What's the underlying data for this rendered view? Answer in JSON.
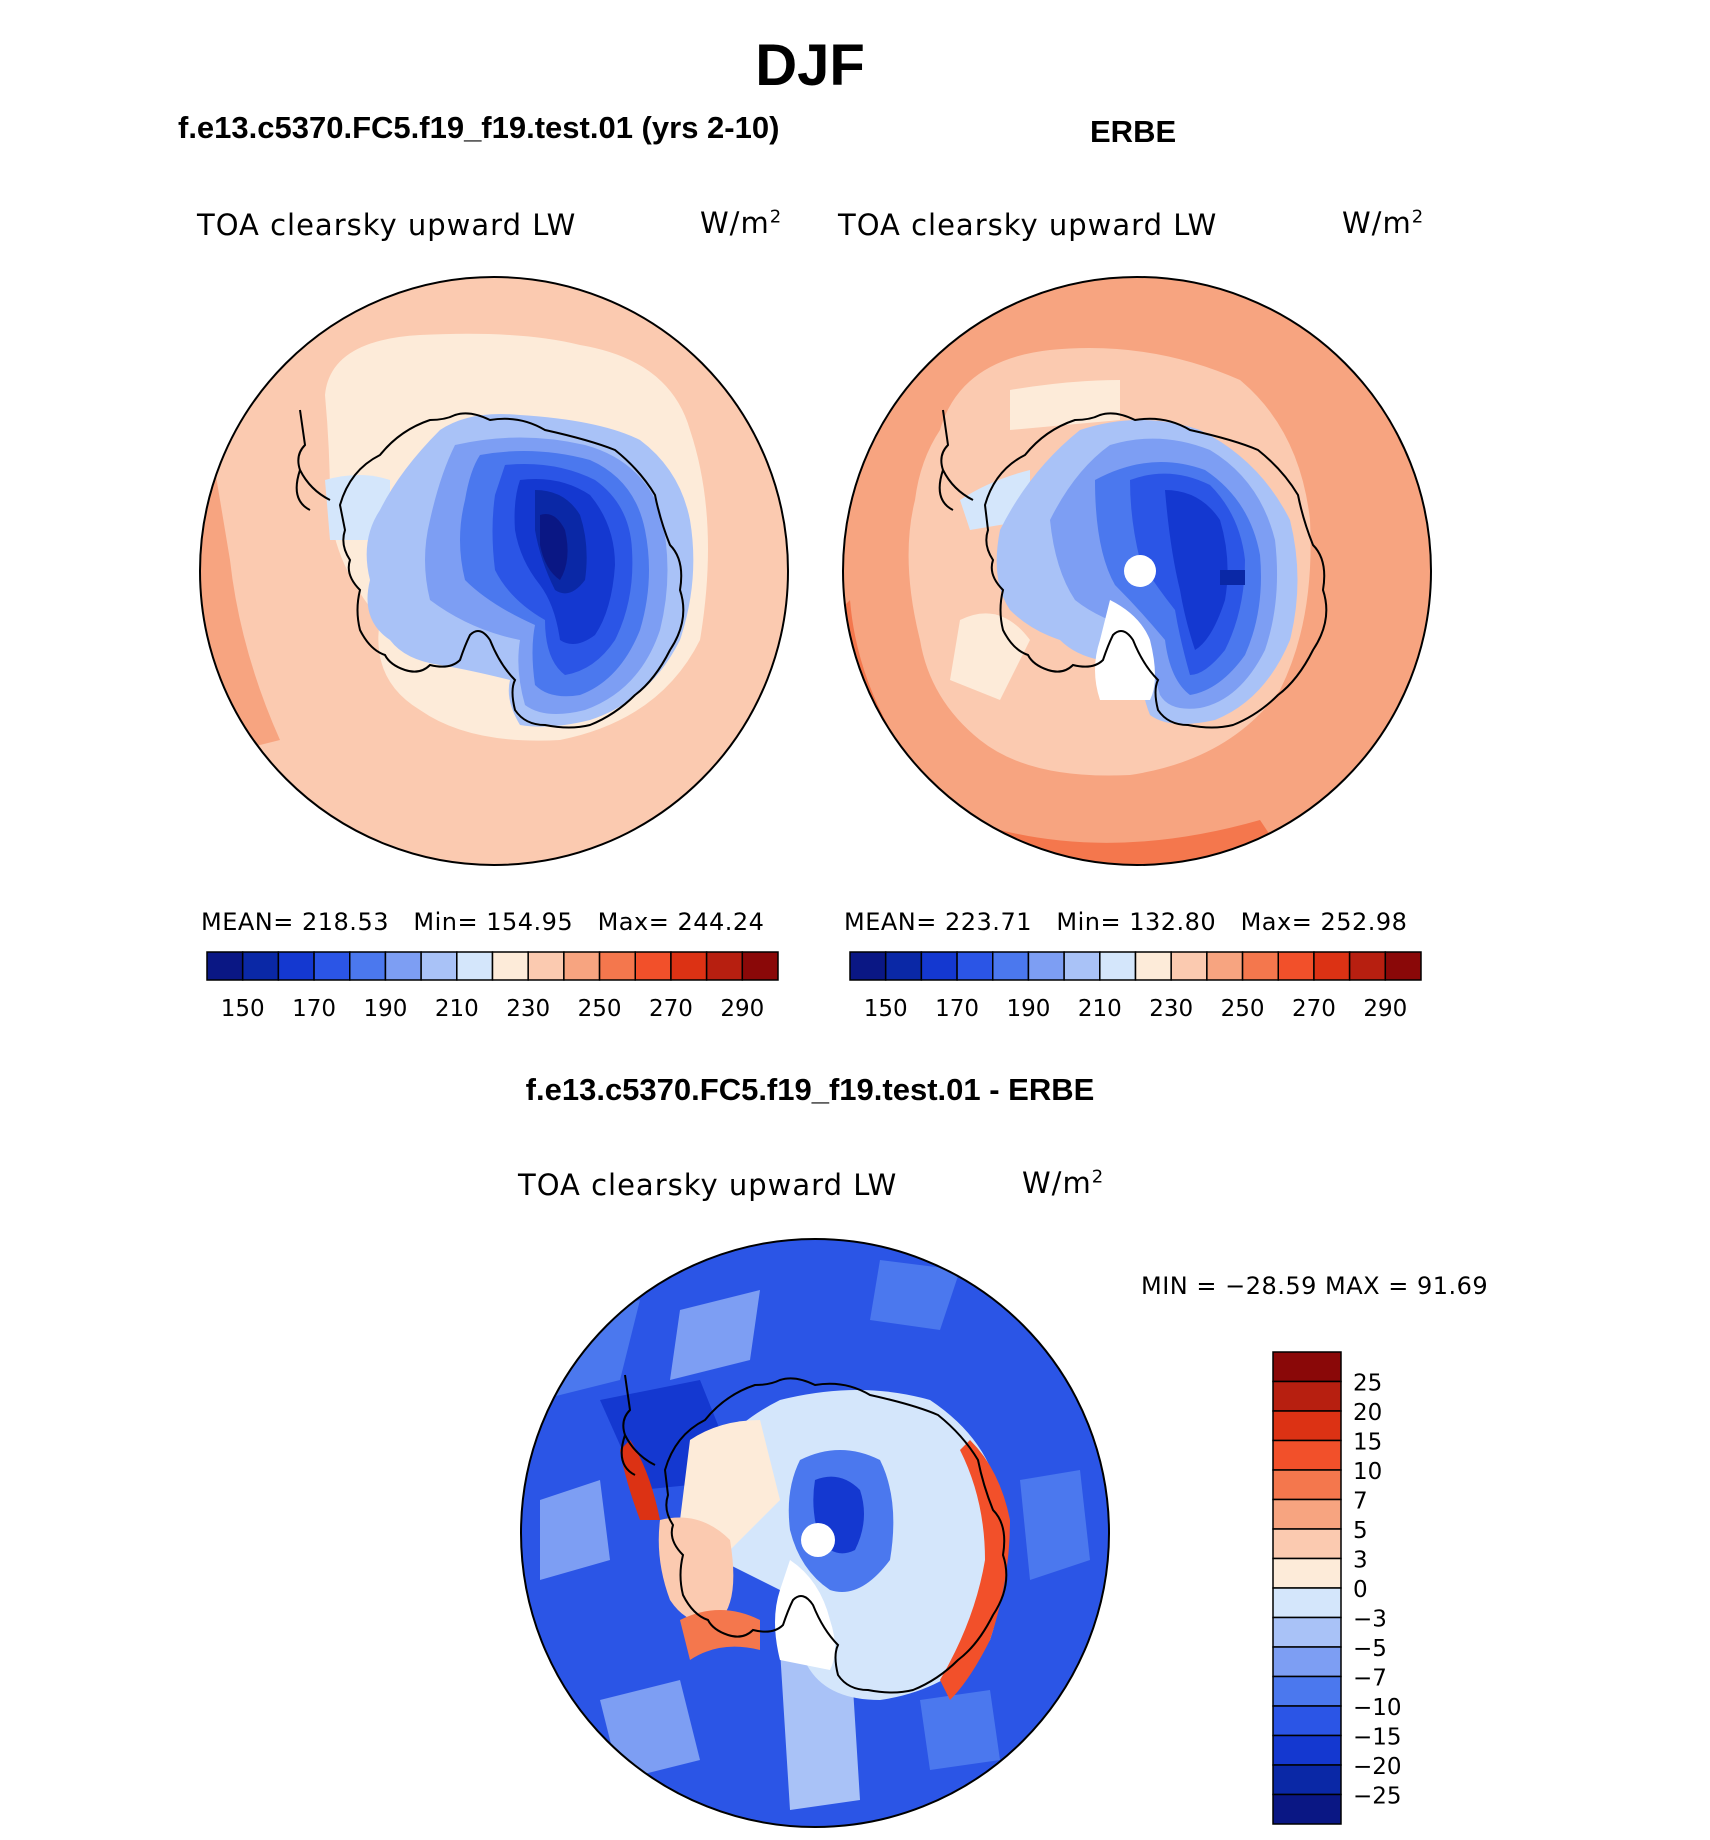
{
  "title": "DJF",
  "panels": [
    {
      "case_title": "f.e13.c5370.FC5.f19_f19.test.01 (yrs 2-10)",
      "plot_title": "TOA clearsky upward LW",
      "units": "W/m",
      "units_exp": "2",
      "stats": {
        "mean_label": "MEAN=",
        "mean": "218.53",
        "min_label": "Min=",
        "min": "154.95",
        "max_label": "Max=",
        "max": "244.24"
      }
    },
    {
      "case_title": "ERBE",
      "plot_title": "TOA clearsky upward LW",
      "units": "W/m",
      "units_exp": "2",
      "stats": {
        "mean_label": "MEAN=",
        "mean": "223.71",
        "min_label": "Min=",
        "min": "132.80",
        "max_label": "Max=",
        "max": "252.98"
      }
    }
  ],
  "diff": {
    "case_title": "f.e13.c5370.FC5.f19_f19.test.01 - ERBE",
    "plot_title": "TOA clearsky upward LW",
    "units": "W/m",
    "units_exp": "2",
    "minmax": "MIN = −28.59 MAX =   91.69"
  },
  "colors": {
    "abs": [
      "#0a1784",
      "#0a28a6",
      "#1438d0",
      "#2b55e6",
      "#4b78ee",
      "#7d9ef3",
      "#a9c2f7",
      "#d4e6fb",
      "#fdebd9",
      "#fbcab0",
      "#f7a480",
      "#f4774d",
      "#f2502a",
      "#dc3214",
      "#b71f10",
      "#8a0808"
    ],
    "diff": [
      "#0a1784",
      "#0a28a6",
      "#1438d0",
      "#2b55e6",
      "#4b78ee",
      "#7d9ef3",
      "#a9c2f7",
      "#d4e6fb",
      "#fdebd9",
      "#fbcab0",
      "#f7a480",
      "#f4774d",
      "#f2502a",
      "#dc3214",
      "#b71f10",
      "#8a0808"
    ]
  },
  "chart_data": [
    {
      "type": "heatmap",
      "projection": "south polar stereographic",
      "title": "TOA clearsky upward LW",
      "units": "W/m2",
      "colorbar": {
        "orientation": "horizontal",
        "levels": [
          150,
          160,
          170,
          180,
          190,
          200,
          210,
          220,
          230,
          240,
          250,
          260,
          270,
          280,
          290
        ],
        "tick_labels": [
          "150",
          "170",
          "190",
          "210",
          "230",
          "250",
          "270",
          "290"
        ]
      },
      "mean": 218.53,
      "min": 154.95,
      "max": 244.24
    },
    {
      "type": "heatmap",
      "projection": "south polar stereographic",
      "title": "TOA clearsky upward LW",
      "units": "W/m2",
      "colorbar": {
        "orientation": "horizontal",
        "levels": [
          150,
          160,
          170,
          180,
          190,
          200,
          210,
          220,
          230,
          240,
          250,
          260,
          270,
          280,
          290
        ],
        "tick_labels": [
          "150",
          "170",
          "190",
          "210",
          "230",
          "250",
          "270",
          "290"
        ]
      },
      "mean": 223.71,
      "min": 132.8,
      "max": 252.98
    },
    {
      "type": "heatmap",
      "projection": "south polar stereographic",
      "title": "TOA clearsky upward LW",
      "units": "W/m2",
      "colorbar": {
        "orientation": "vertical",
        "levels": [
          25,
          20,
          15,
          10,
          7,
          5,
          3,
          0,
          -3,
          -5,
          -7,
          -10,
          -15,
          -20,
          -25
        ],
        "tick_labels": [
          "25",
          "20",
          "15",
          "10",
          "7",
          "5",
          "3",
          "0",
          "−3",
          "−5",
          "−7",
          "−10",
          "−15",
          "−20",
          "−25"
        ]
      },
      "min": -28.59,
      "max": 91.69
    }
  ]
}
